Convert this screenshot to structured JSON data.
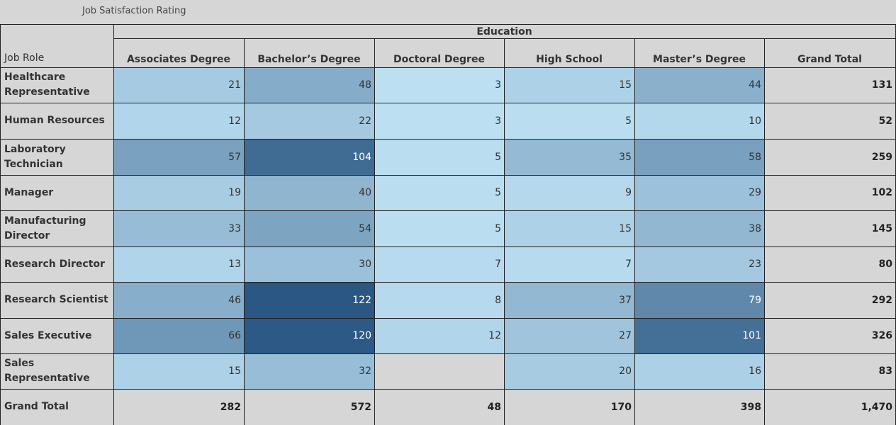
{
  "title": "Job Satisfaction Rating",
  "chart_data": {
    "type": "table",
    "column_group_label": "Education",
    "row_header_label": "Job Role",
    "columns": [
      "Associates Degree",
      "Bachelor’s Degree",
      "Doctoral Degree",
      "High School",
      "Master’s Degree"
    ],
    "grand_total_label": "Grand Total",
    "rows": [
      {
        "label": "Healthcare Representative",
        "values": [
          21,
          48,
          3,
          15,
          44
        ],
        "total": "131"
      },
      {
        "label": "Human Resources",
        "values": [
          12,
          22,
          3,
          5,
          10
        ],
        "total": "52"
      },
      {
        "label": "Laboratory Technician",
        "values": [
          57,
          104,
          5,
          35,
          58
        ],
        "total": "259"
      },
      {
        "label": "Manager",
        "values": [
          19,
          40,
          5,
          9,
          29
        ],
        "total": "102"
      },
      {
        "label": "Manufacturing Director",
        "values": [
          33,
          54,
          5,
          15,
          38
        ],
        "total": "145"
      },
      {
        "label": "Research Director",
        "values": [
          13,
          30,
          7,
          7,
          23
        ],
        "total": "80"
      },
      {
        "label": "Research Scientist",
        "values": [
          46,
          122,
          8,
          37,
          79
        ],
        "total": "292"
      },
      {
        "label": "Sales Executive",
        "values": [
          66,
          120,
          12,
          27,
          101
        ],
        "total": "326"
      },
      {
        "label": "Sales Representative",
        "values": [
          15,
          32,
          null,
          20,
          16
        ],
        "total": "83"
      }
    ],
    "column_totals": [
      "282",
      "572",
      "48",
      "170",
      "398"
    ],
    "grand_total": "1,470",
    "color_scale": {
      "min": 3,
      "max": 122,
      "low": "#bcdff2",
      "high": "#2a5783"
    }
  }
}
